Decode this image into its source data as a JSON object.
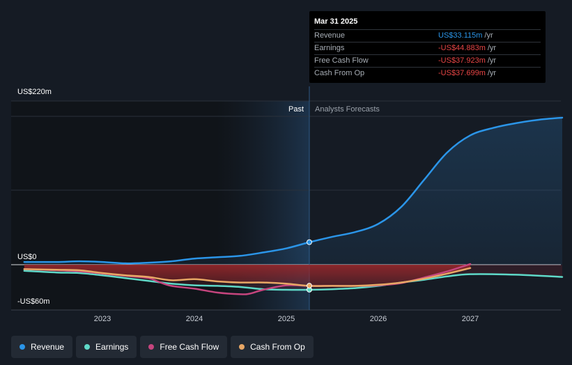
{
  "tooltip": {
    "date": "Mar 31 2025",
    "rows": [
      {
        "name": "Revenue",
        "value": "US$33.115m",
        "unit": "/yr",
        "color": "#2b95e8"
      },
      {
        "name": "Earnings",
        "value": "-US$44.883m",
        "unit": "/yr",
        "color": "#e84545"
      },
      {
        "name": "Free Cash Flow",
        "value": "-US$37.923m",
        "unit": "/yr",
        "color": "#e84545"
      },
      {
        "name": "Cash From Op",
        "value": "-US$37.699m",
        "unit": "/yr",
        "color": "#e84545"
      }
    ]
  },
  "regions": {
    "past": "Past",
    "forecast": "Analysts Forecasts"
  },
  "legend": [
    {
      "label": "Revenue",
      "color": "#2b95e8"
    },
    {
      "label": "Earnings",
      "color": "#5fd9c8"
    },
    {
      "label": "Free Cash Flow",
      "color": "#c6457e"
    },
    {
      "label": "Cash From Op",
      "color": "#e8a765"
    }
  ],
  "chart_data": {
    "type": "line",
    "y_tick_labels": [
      "US$220m",
      "US$0",
      "-US$60m"
    ],
    "x_tick_labels": [
      "2023",
      "2024",
      "2025",
      "2026",
      "2027"
    ],
    "ylim": [
      -60,
      220
    ],
    "xlim": [
      2022.0,
      2028.0
    ],
    "divider_x": 2025.25,
    "series": [
      {
        "name": "Revenue",
        "color": "#2b95e8",
        "x": [
          2022.15,
          2022.5,
          2022.75,
          2023.0,
          2023.25,
          2023.5,
          2023.75,
          2024.0,
          2024.25,
          2024.5,
          2024.75,
          2025.0,
          2025.25,
          2025.5,
          2025.75,
          2026.0,
          2026.25,
          2026.5,
          2026.75,
          2027.0,
          2027.25,
          2027.5,
          2027.75,
          2028.0
        ],
        "y": [
          4,
          4,
          5,
          4,
          2,
          3,
          5,
          9,
          11,
          13,
          18,
          24,
          33,
          41,
          48,
          60,
          85,
          125,
          165,
          190,
          201,
          208,
          213,
          216
        ]
      },
      {
        "name": "Earnings",
        "color": "#5fd9c8",
        "x": [
          2022.15,
          2022.5,
          2022.75,
          2023.0,
          2023.25,
          2023.5,
          2023.75,
          2024.0,
          2024.25,
          2024.5,
          2024.75,
          2025.0,
          2025.25,
          2025.5,
          2025.75,
          2026.0,
          2026.25,
          2026.5,
          2026.75,
          2027.0,
          2027.5,
          2028.0
        ],
        "y": [
          -11,
          -14,
          -15,
          -19,
          -24,
          -29,
          -34,
          -37,
          -38,
          -40,
          -44,
          -45,
          -45,
          -44,
          -42,
          -38,
          -32,
          -27,
          -21,
          -17,
          -18,
          -22
        ]
      },
      {
        "name": "Free Cash Flow",
        "color": "#c6457e",
        "x": [
          2022.15,
          2022.5,
          2022.75,
          2023.0,
          2023.25,
          2023.5,
          2023.6,
          2023.75,
          2024.0,
          2024.25,
          2024.5,
          2024.6,
          2024.75,
          2025.0,
          2025.25,
          2025.5,
          2025.75,
          2026.0,
          2026.25,
          2026.5,
          2026.75,
          2027.0
        ],
        "y": [
          -8,
          -10,
          -12,
          -16,
          -20,
          -24,
          -30,
          -38,
          -43,
          -50,
          -53,
          -52,
          -45,
          -37,
          -38,
          -38,
          -38,
          -37,
          -33,
          -23,
          -12,
          1
        ]
      },
      {
        "name": "Cash From Op",
        "color": "#e8a765",
        "x": [
          2022.15,
          2022.5,
          2022.75,
          2023.0,
          2023.25,
          2023.5,
          2023.75,
          2024.0,
          2024.25,
          2024.5,
          2024.75,
          2025.0,
          2025.25,
          2025.5,
          2025.75,
          2026.0,
          2026.25,
          2026.5,
          2026.75,
          2027.0
        ],
        "y": [
          -8,
          -9,
          -10,
          -15,
          -19,
          -22,
          -28,
          -26,
          -30,
          -32,
          -32,
          -34,
          -38,
          -38,
          -38,
          -36,
          -32,
          -25,
          -16,
          -6
        ]
      }
    ],
    "markers": [
      {
        "series": "Revenue",
        "x": 2025.25,
        "y": 33.115
      },
      {
        "series": "Earnings",
        "x": 2025.25,
        "y": -44.883
      },
      {
        "series": "Cash From Op",
        "x": 2025.25,
        "y": -37.699
      }
    ]
  }
}
